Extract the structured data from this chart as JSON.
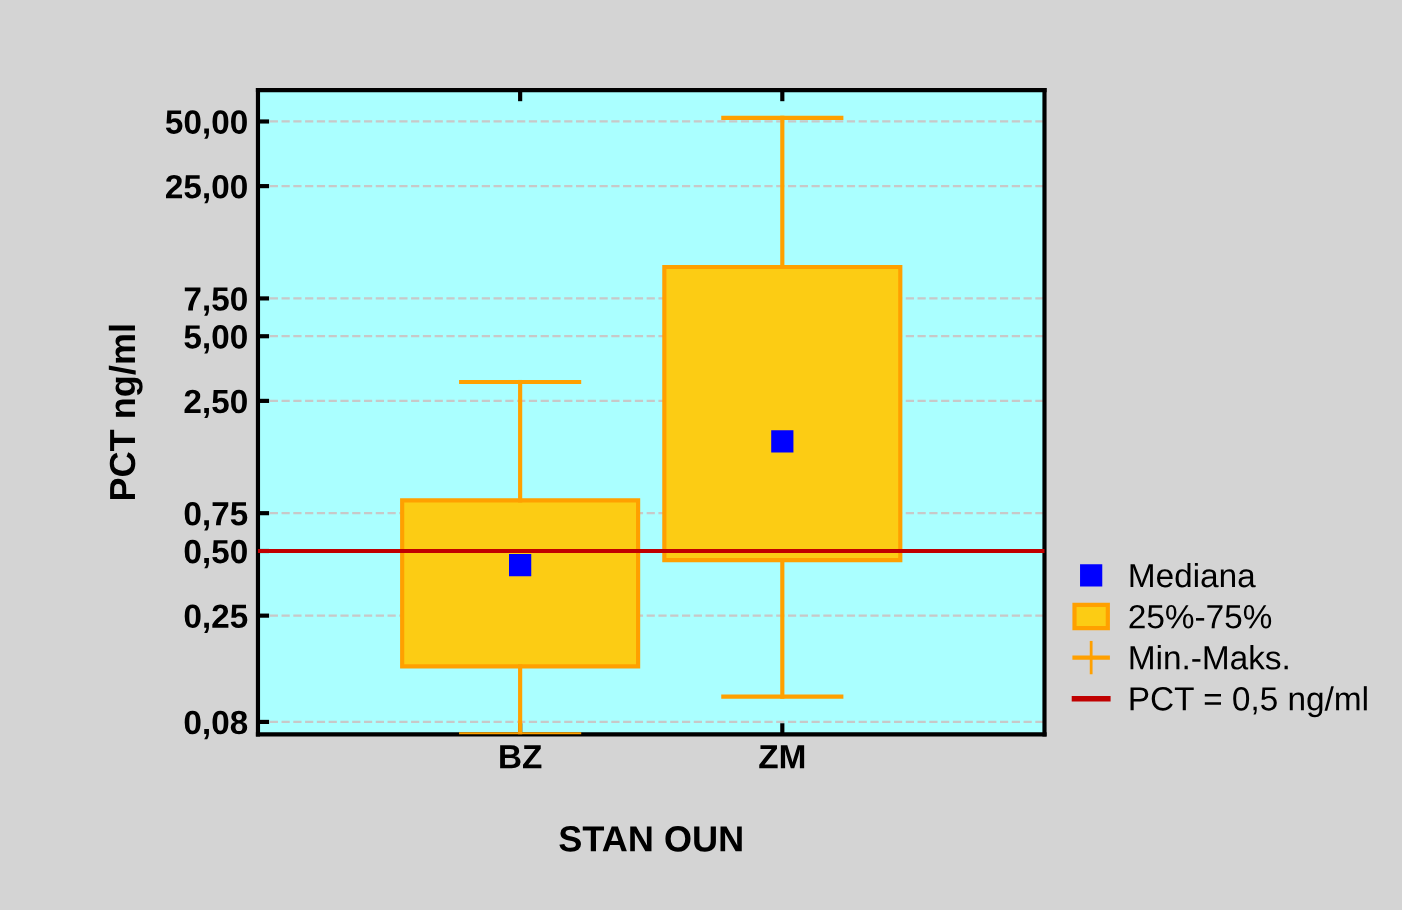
{
  "chart_data": {
    "type": "box",
    "xlabel": "STAN OUN",
    "ylabel": "PCT ng/ml",
    "categories": [
      "BZ",
      "ZM"
    ],
    "boxes": [
      {
        "low": 0.07,
        "q1": 0.145,
        "median": 0.43,
        "q3": 0.86,
        "high": 3.06
      },
      {
        "low": 0.105,
        "q1": 0.453,
        "median": 1.62,
        "q3": 10.5,
        "high": 52
      }
    ],
    "color": "#fccc14",
    "log": "y",
    "ylim": [
      0.07,
      70
    ],
    "yticks": [
      {
        "value": 0.08,
        "label": "0,08"
      },
      {
        "value": 0.25,
        "label": "0,25"
      },
      {
        "value": 0.5,
        "label": "0,50"
      },
      {
        "value": 0.75,
        "label": "0,75"
      },
      {
        "value": 2.5,
        "label": "2,50"
      },
      {
        "value": 5,
        "label": "5,00"
      },
      {
        "value": 7.5,
        "label": "7,50"
      },
      {
        "value": 25,
        "label": "25,00"
      },
      {
        "value": 50,
        "label": "50,00"
      }
    ],
    "grid": "y",
    "ref_lines": [
      {
        "axis": "y",
        "value": 0.5,
        "label": "PCT = 0,5 ng/ml",
        "color": "#c00000"
      }
    ],
    "annotations": [
      "Mediana",
      "25%-75%",
      "Min.-Maks."
    ],
    "legend": "bottom right",
    "marker": "square"
  }
}
